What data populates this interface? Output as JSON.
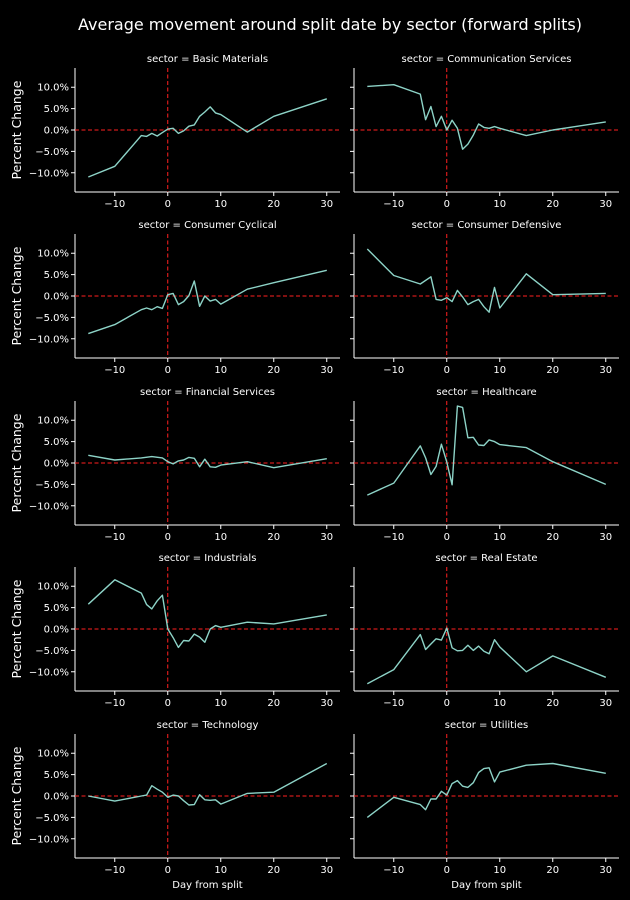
{
  "title": "Average movement around split date by sector (forward splits)",
  "chart_data": {
    "type": "line",
    "title": "Average movement around split date by sector (forward splits)",
    "xlabel": "Day from split",
    "ylabel": "Percent Change",
    "xlim": [
      -17.5,
      32.5
    ],
    "ylim": [
      -14.5,
      14.5
    ],
    "xticks": [
      -10,
      0,
      10,
      20,
      30
    ],
    "xtick_labels": [
      "−10",
      "0",
      "10",
      "20",
      "30"
    ],
    "yticks": [
      10,
      5,
      0,
      -5,
      -10
    ],
    "ytick_labels": [
      "10.0%",
      "5.0%",
      "0.0%",
      "−5.0%",
      "−10.0%"
    ],
    "reference_lines": {
      "x": 0,
      "y": 0,
      "color": "#ff2020",
      "style": "dashed"
    },
    "line_color": "#8dd3c7",
    "panels": [
      {
        "title": "sector = Basic Materials",
        "points": [
          [
            -15,
            -11
          ],
          [
            -10,
            -8.5
          ],
          [
            -5,
            -1.3
          ],
          [
            -4,
            -1.5
          ],
          [
            -3,
            -0.8
          ],
          [
            -2,
            -1.4
          ],
          [
            -1,
            -0.6
          ],
          [
            0,
            0.2
          ],
          [
            1,
            0.4
          ],
          [
            2,
            -0.8
          ],
          [
            3,
            -0.2
          ],
          [
            4,
            0.9
          ],
          [
            5,
            1.2
          ],
          [
            6,
            3.2
          ],
          [
            7,
            4.2
          ],
          [
            8,
            5.4
          ],
          [
            9,
            4
          ],
          [
            10,
            3.6
          ],
          [
            15,
            -0.5
          ],
          [
            20,
            3.2
          ],
          [
            30,
            7.3
          ]
        ]
      },
      {
        "title": "sector = Communication Services",
        "points": [
          [
            -15,
            10.2
          ],
          [
            -10,
            10.6
          ],
          [
            -5,
            8.4
          ],
          [
            -4,
            2.4
          ],
          [
            -3,
            5.5
          ],
          [
            -2,
            0.8
          ],
          [
            -1,
            3.2
          ],
          [
            0,
            0
          ],
          [
            1,
            2.3
          ],
          [
            2,
            0.4
          ],
          [
            3,
            -4.5
          ],
          [
            4,
            -3.3
          ],
          [
            5,
            -1.2
          ],
          [
            6,
            1.4
          ],
          [
            7,
            0.6
          ],
          [
            8,
            0.4
          ],
          [
            9,
            0.8
          ],
          [
            10,
            0.4
          ],
          [
            15,
            -1.3
          ],
          [
            20,
            0
          ],
          [
            30,
            1.9
          ]
        ]
      },
      {
        "title": "sector = Consumer Cyclical",
        "points": [
          [
            -15,
            -8.8
          ],
          [
            -10,
            -6.7
          ],
          [
            -5,
            -3.2
          ],
          [
            -4,
            -2.8
          ],
          [
            -3,
            -3.2
          ],
          [
            -2,
            -2.5
          ],
          [
            -1,
            -2.9
          ],
          [
            0,
            0.3
          ],
          [
            1,
            0.6
          ],
          [
            2,
            -2
          ],
          [
            3,
            -1.3
          ],
          [
            4,
            0.1
          ],
          [
            5,
            3.5
          ],
          [
            6,
            -2.4
          ],
          [
            7,
            0
          ],
          [
            8,
            -1.2
          ],
          [
            9,
            -0.8
          ],
          [
            10,
            -1.9
          ],
          [
            15,
            1.6
          ],
          [
            20,
            3.1
          ],
          [
            30,
            6
          ]
        ]
      },
      {
        "title": "sector = Consumer Defensive",
        "points": [
          [
            -15,
            11
          ],
          [
            -10,
            4.8
          ],
          [
            -5,
            2.8
          ],
          [
            -3,
            4.5
          ],
          [
            -2,
            -0.8
          ],
          [
            -1,
            -1
          ],
          [
            0,
            -0.4
          ],
          [
            1,
            -1.3
          ],
          [
            2,
            1.3
          ],
          [
            3,
            -0.2
          ],
          [
            4,
            -2
          ],
          [
            5,
            -1.3
          ],
          [
            6,
            -0.8
          ],
          [
            7,
            -2.5
          ],
          [
            8,
            -3.8
          ],
          [
            9,
            2
          ],
          [
            10,
            -2.8
          ],
          [
            15,
            5.2
          ],
          [
            20,
            0.3
          ],
          [
            30,
            0.6
          ]
        ]
      },
      {
        "title": "sector = Financial Services",
        "points": [
          [
            -15,
            1.8
          ],
          [
            -10,
            0.7
          ],
          [
            -5,
            1.2
          ],
          [
            -3,
            1.5
          ],
          [
            -1,
            1.2
          ],
          [
            0,
            0.3
          ],
          [
            1,
            -0.2
          ],
          [
            2,
            0.5
          ],
          [
            3,
            0.7
          ],
          [
            4,
            1.3
          ],
          [
            5,
            1.1
          ],
          [
            6,
            -0.9
          ],
          [
            7,
            0.9
          ],
          [
            8,
            -0.9
          ],
          [
            9,
            -1
          ],
          [
            10,
            -0.5
          ],
          [
            15,
            0.3
          ],
          [
            20,
            -1.1
          ],
          [
            30,
            1
          ]
        ]
      },
      {
        "title": "sector = Healthcare",
        "points": [
          [
            -15,
            -7.5
          ],
          [
            -10,
            -4.7
          ],
          [
            -5,
            4
          ],
          [
            -4,
            1.2
          ],
          [
            -3,
            -2.7
          ],
          [
            -2,
            -0.8
          ],
          [
            -1,
            4.4
          ],
          [
            0,
            0.2
          ],
          [
            1,
            -5.1
          ],
          [
            2,
            13.3
          ],
          [
            3,
            13
          ],
          [
            4,
            5.9
          ],
          [
            5,
            6
          ],
          [
            6,
            4.2
          ],
          [
            7,
            4.1
          ],
          [
            8,
            5.4
          ],
          [
            9,
            5
          ],
          [
            10,
            4.3
          ],
          [
            15,
            3.6
          ],
          [
            20,
            0.3
          ],
          [
            30,
            -5
          ]
        ]
      },
      {
        "title": "sector = Industrials",
        "points": [
          [
            -15,
            5.8
          ],
          [
            -10,
            11.5
          ],
          [
            -5,
            8.4
          ],
          [
            -4,
            5.7
          ],
          [
            -3,
            4.7
          ],
          [
            -2,
            6.6
          ],
          [
            -1,
            7.9
          ],
          [
            0,
            0
          ],
          [
            1,
            -2
          ],
          [
            2,
            -4.3
          ],
          [
            3,
            -2.7
          ],
          [
            4,
            -2.8
          ],
          [
            5,
            -1.2
          ],
          [
            6,
            -1.9
          ],
          [
            7,
            -3.1
          ],
          [
            8,
            0
          ],
          [
            9,
            0.8
          ],
          [
            10,
            0.4
          ],
          [
            15,
            1.6
          ],
          [
            20,
            1.2
          ],
          [
            30,
            3.3
          ]
        ]
      },
      {
        "title": "sector = Real Estate",
        "points": [
          [
            -15,
            -12.8
          ],
          [
            -10,
            -9.5
          ],
          [
            -5,
            -1.3
          ],
          [
            -4,
            -4.8
          ],
          [
            -3,
            -3.5
          ],
          [
            -2,
            -2.3
          ],
          [
            -1,
            -2.6
          ],
          [
            0,
            0.2
          ],
          [
            1,
            -4.4
          ],
          [
            2,
            -5.1
          ],
          [
            3,
            -5
          ],
          [
            4,
            -3.8
          ],
          [
            5,
            -5
          ],
          [
            6,
            -4
          ],
          [
            7,
            -5.2
          ],
          [
            8,
            -5.8
          ],
          [
            9,
            -2.5
          ],
          [
            10,
            -4.2
          ],
          [
            15,
            -10
          ],
          [
            20,
            -6.3
          ],
          [
            30,
            -11.3
          ]
        ]
      },
      {
        "title": "sector = Technology",
        "points": [
          [
            -15,
            0
          ],
          [
            -10,
            -1.2
          ],
          [
            -5,
            0
          ],
          [
            -4,
            0.2
          ],
          [
            -3,
            2.4
          ],
          [
            -2,
            1.6
          ],
          [
            -1,
            0.9
          ],
          [
            0,
            -0.3
          ],
          [
            1,
            0.2
          ],
          [
            2,
            0
          ],
          [
            3,
            -1.1
          ],
          [
            4,
            -2.1
          ],
          [
            5,
            -2
          ],
          [
            6,
            0.3
          ],
          [
            7,
            -0.9
          ],
          [
            8,
            -1
          ],
          [
            9,
            -0.9
          ],
          [
            10,
            -1.9
          ],
          [
            15,
            0.6
          ],
          [
            20,
            0.9
          ],
          [
            30,
            7.6
          ]
        ]
      },
      {
        "title": "sector = Utilities",
        "points": [
          [
            -15,
            -5
          ],
          [
            -10,
            -0.3
          ],
          [
            -5,
            -2
          ],
          [
            -4,
            -3.2
          ],
          [
            -3,
            -0.7
          ],
          [
            -2,
            -0.7
          ],
          [
            -1,
            1.1
          ],
          [
            0,
            0.2
          ],
          [
            1,
            2.9
          ],
          [
            2,
            3.6
          ],
          [
            3,
            2.3
          ],
          [
            4,
            2
          ],
          [
            5,
            3.1
          ],
          [
            6,
            5.5
          ],
          [
            7,
            6.4
          ],
          [
            8,
            6.6
          ],
          [
            9,
            3.3
          ],
          [
            10,
            5.6
          ],
          [
            15,
            7.2
          ],
          [
            20,
            7.6
          ],
          [
            30,
            5.3
          ]
        ]
      }
    ]
  }
}
